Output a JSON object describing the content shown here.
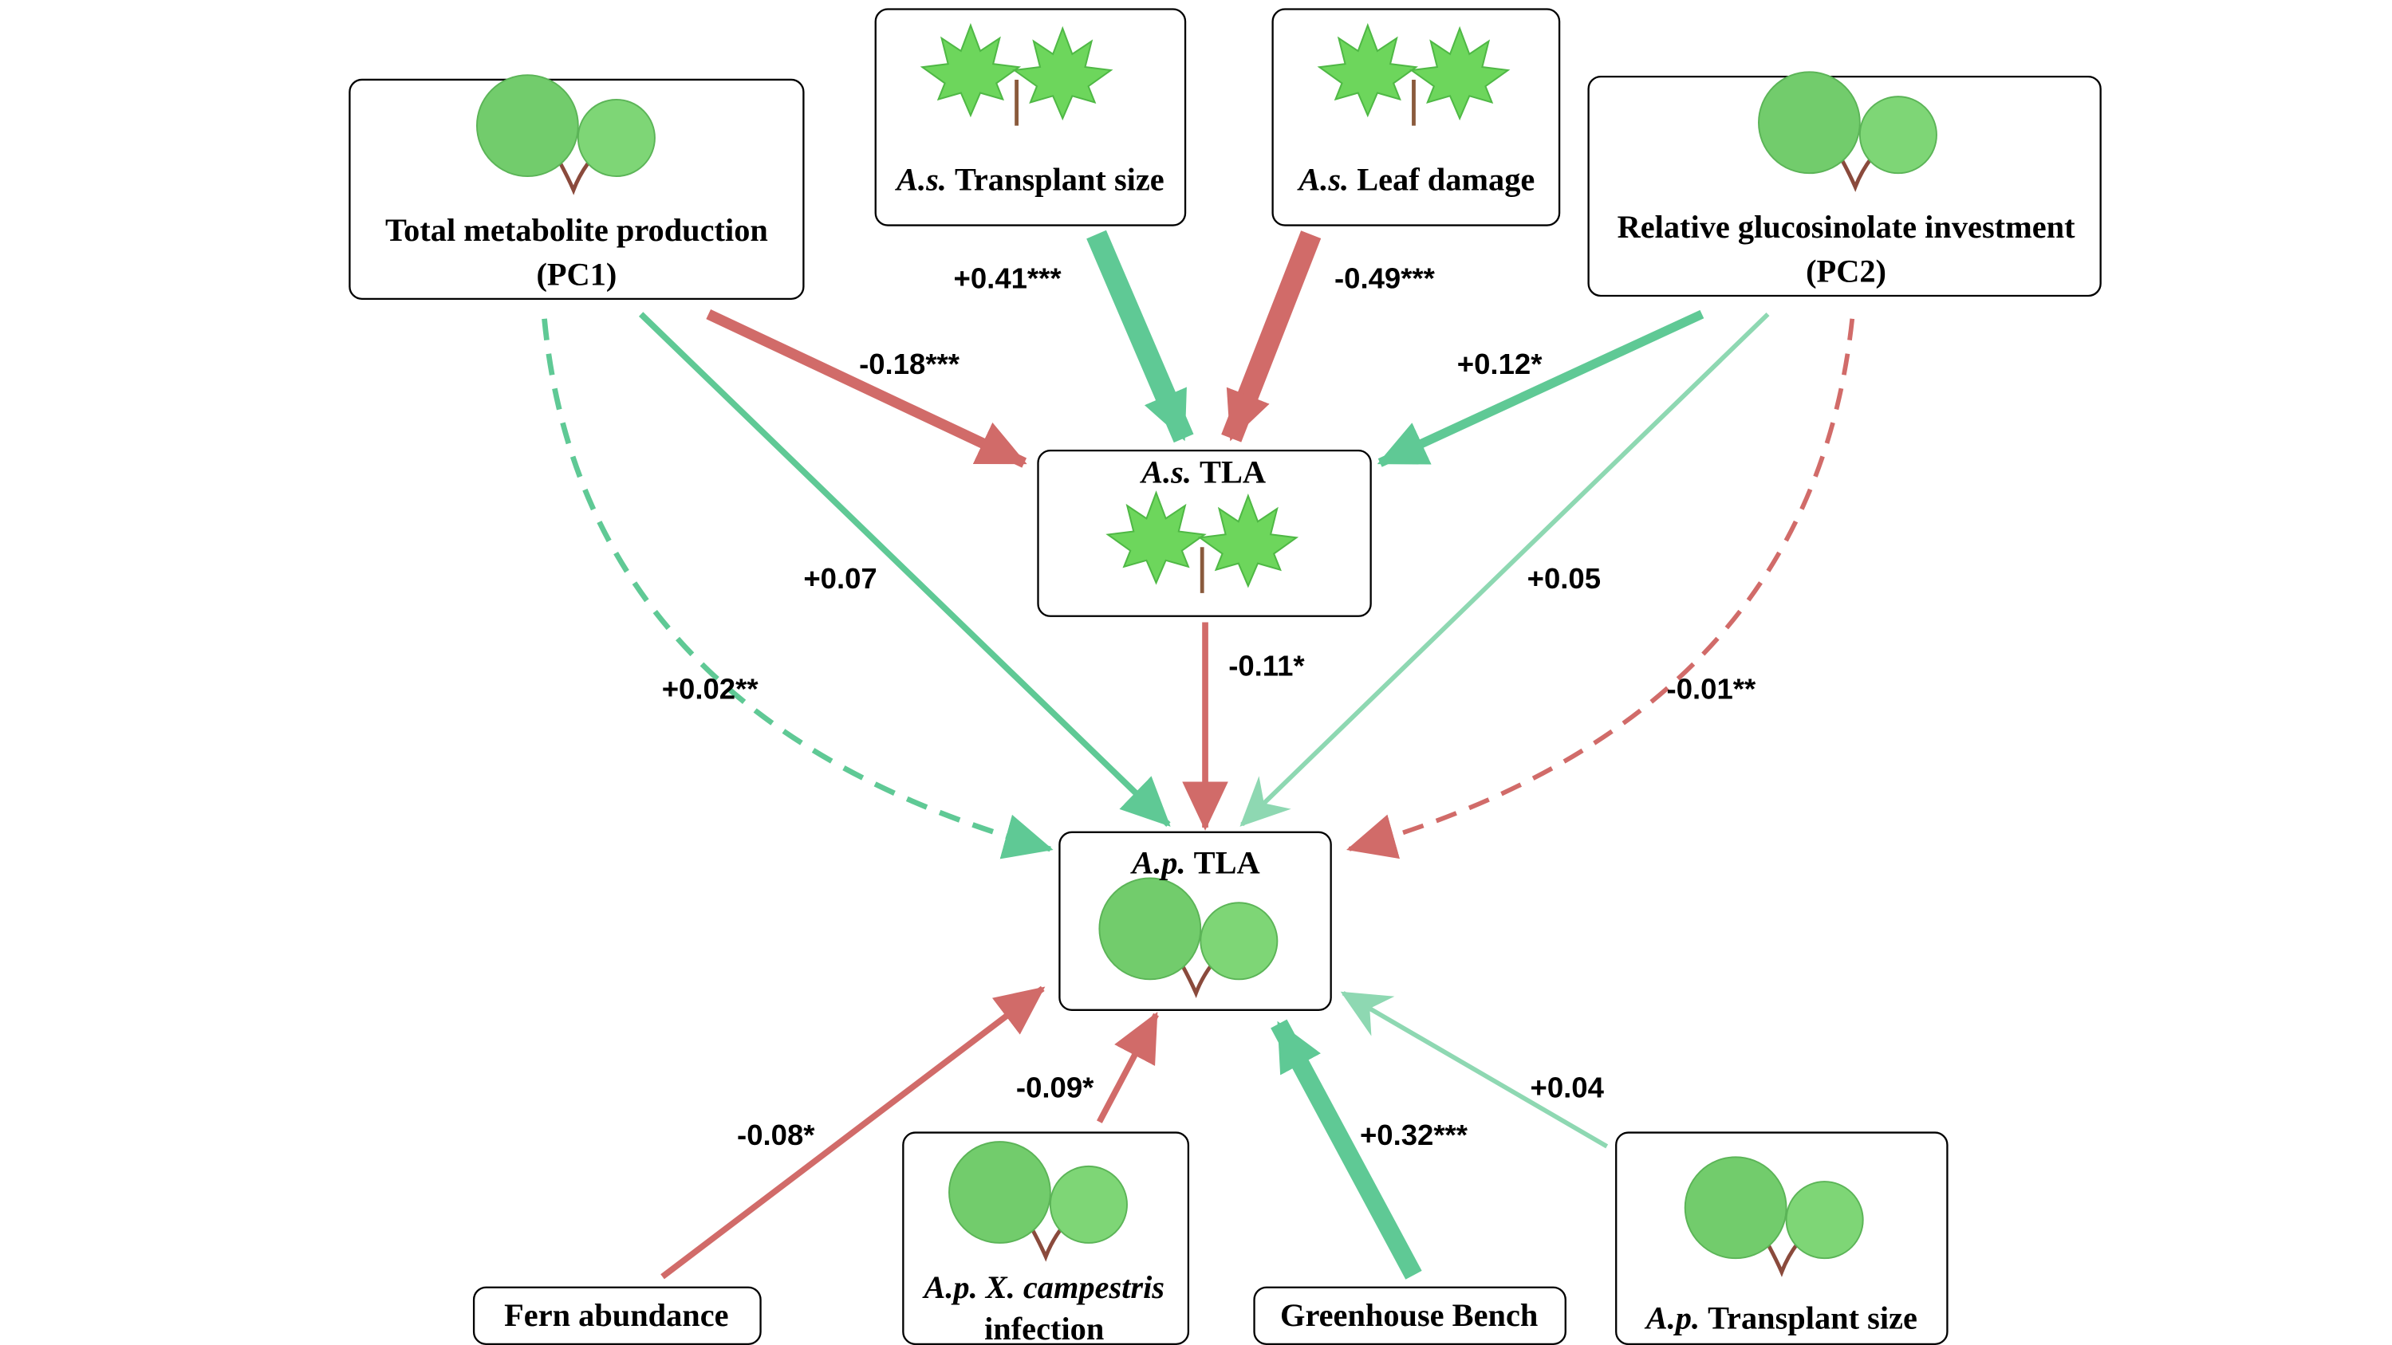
{
  "nodes": [
    {
      "lines": [
        "Total metabolite production",
        "(PC1)"
      ]
    },
    {
      "italic": "A.s.",
      "text": "Transplant size"
    },
    {
      "italic": "A.s.",
      "text": "Leaf damage"
    },
    {
      "lines": [
        "Relative glucosinolate investment",
        "(PC2)"
      ]
    },
    {
      "italic": "A.s.",
      "text": "TLA"
    },
    {
      "italic": "A.p.",
      "text": "TLA"
    },
    {
      "text": "Fern abundance"
    },
    {
      "italic": "A.p. X. campestris",
      "text": "infection"
    },
    {
      "text": "Greenhouse Bench"
    },
    {
      "italic": "A.p.",
      "text": "Transplant size"
    }
  ],
  "edges": [
    {
      "label": "-0.18***"
    },
    {
      "label": "+0.41***"
    },
    {
      "label": "-0.49***"
    },
    {
      "label": "+0.12*"
    },
    {
      "label": "+0.07"
    },
    {
      "label": "+0.02**"
    },
    {
      "label": "-0.11*"
    },
    {
      "label": "+0.05"
    },
    {
      "label": "-0.01**"
    },
    {
      "label": "-0.08*"
    },
    {
      "label": "-0.09*"
    },
    {
      "label": "+0.32***"
    },
    {
      "label": "+0.04"
    }
  ]
}
